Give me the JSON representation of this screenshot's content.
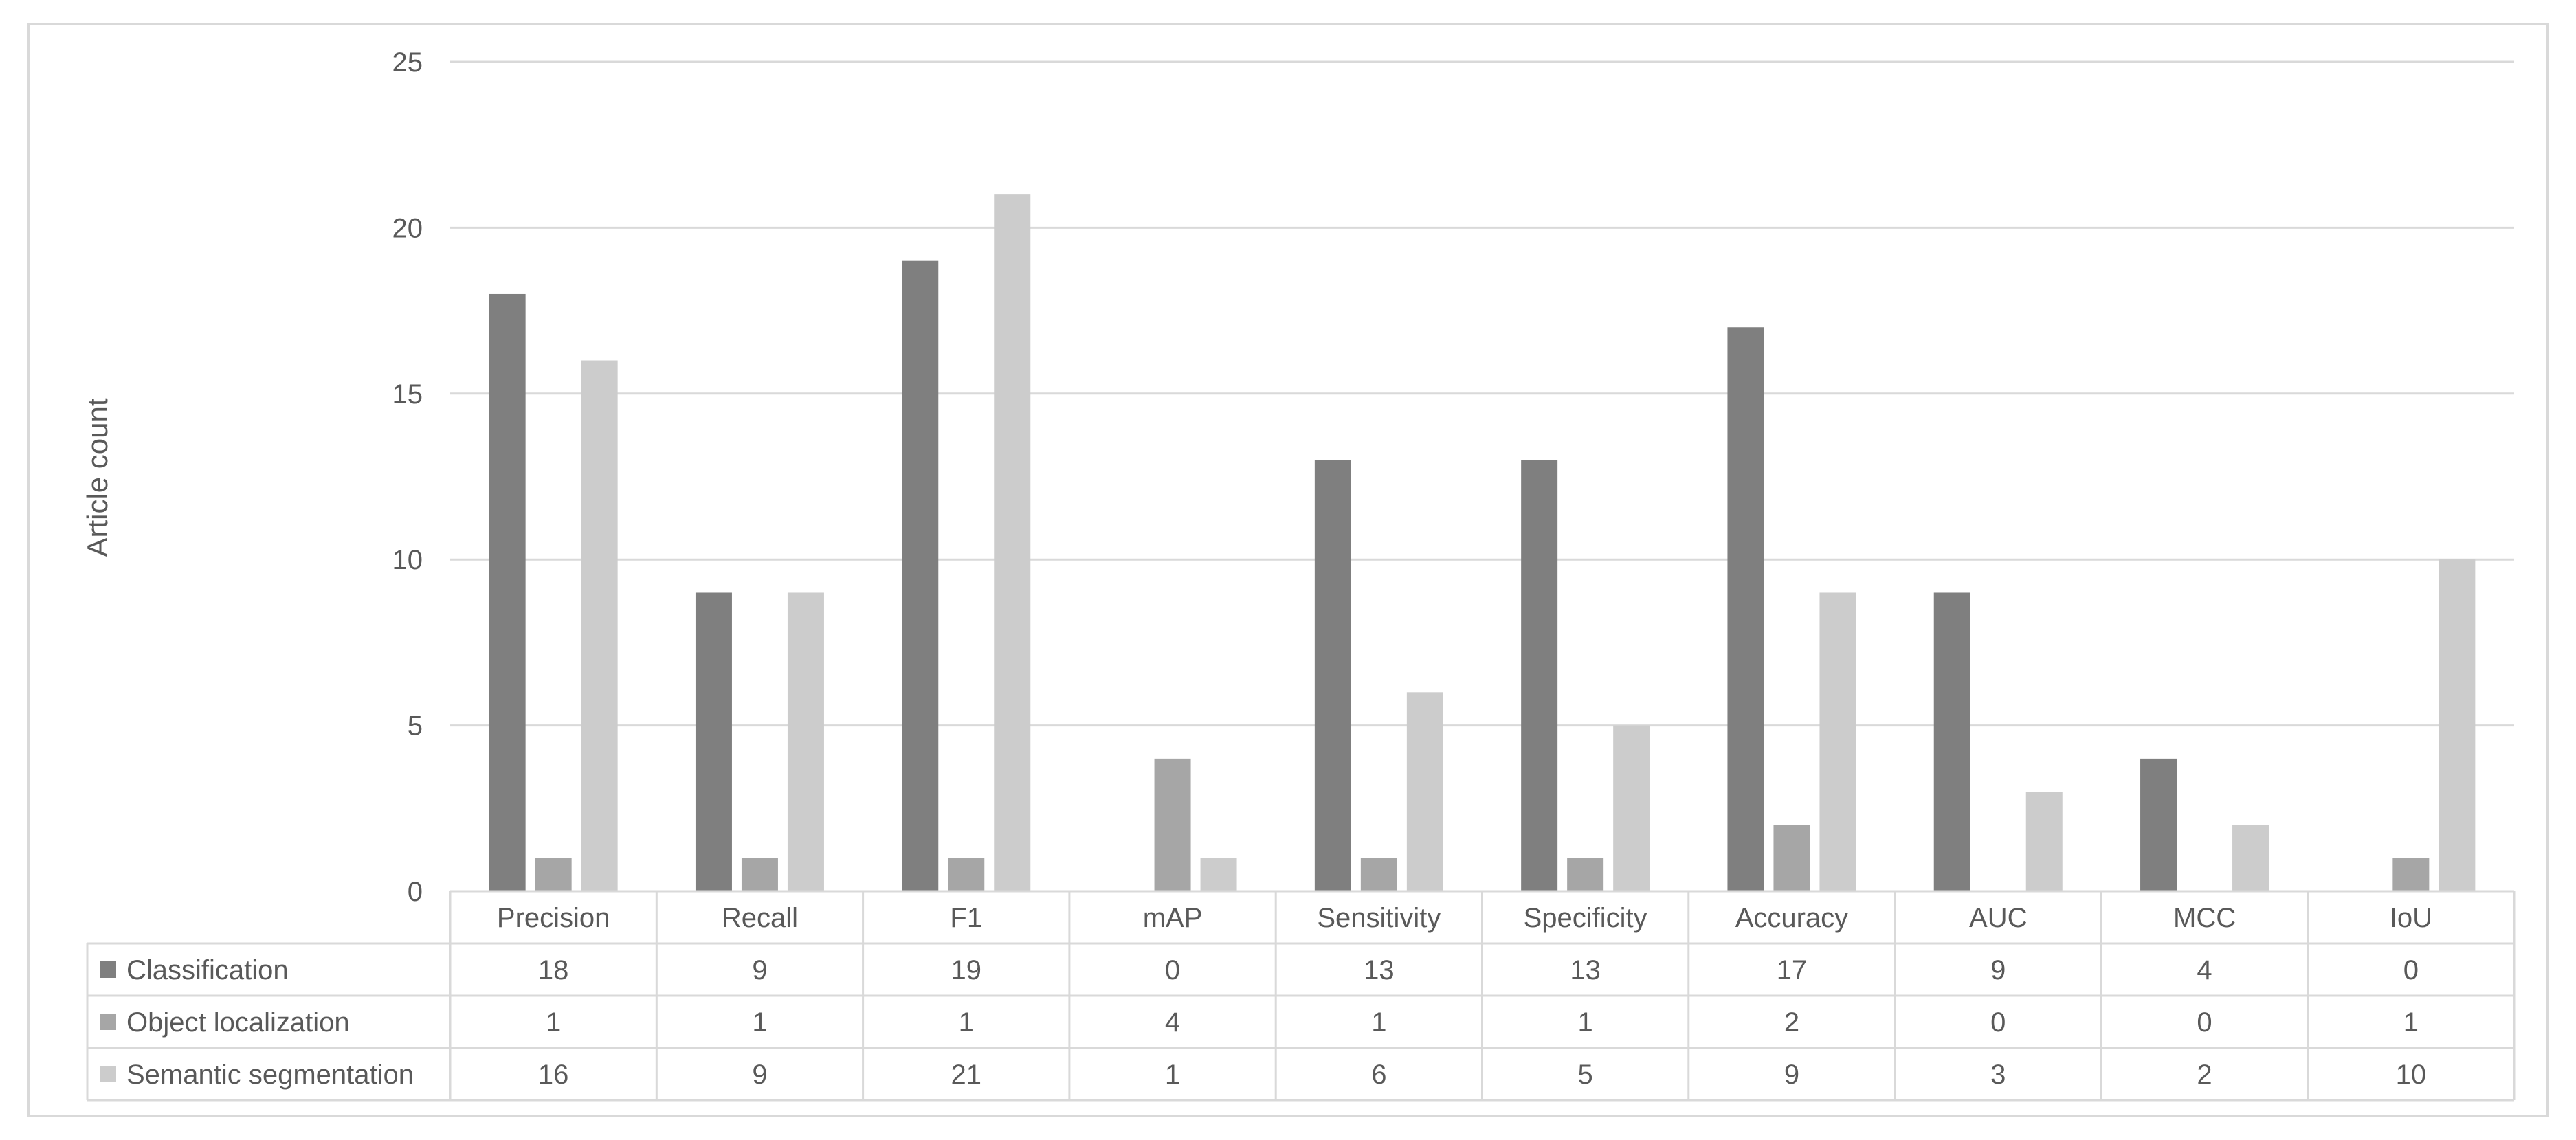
{
  "chart_data": {
    "type": "bar",
    "title": "",
    "xlabel": "",
    "ylabel": "Article count",
    "ylim": [
      0,
      25
    ],
    "yticks": [
      0,
      5,
      10,
      15,
      20,
      25
    ],
    "grid": true,
    "legend": "data-table",
    "categories": [
      "Precision",
      "Recall",
      "F1",
      "mAP",
      "Sensitivity",
      "Specificity",
      "Accuracy",
      "AUC",
      "MCC",
      "IoU"
    ],
    "series": [
      {
        "name": "Classification",
        "color": "#7f7f7f",
        "values": [
          18,
          9,
          19,
          0,
          13,
          13,
          17,
          9,
          4,
          0
        ]
      },
      {
        "name": "Object localization",
        "color": "#a6a6a6",
        "values": [
          1,
          1,
          1,
          4,
          1,
          1,
          2,
          0,
          0,
          1
        ]
      },
      {
        "name": "Semantic segmentation",
        "color": "#cccccc",
        "values": [
          16,
          9,
          21,
          1,
          6,
          5,
          9,
          3,
          2,
          10
        ]
      }
    ]
  }
}
